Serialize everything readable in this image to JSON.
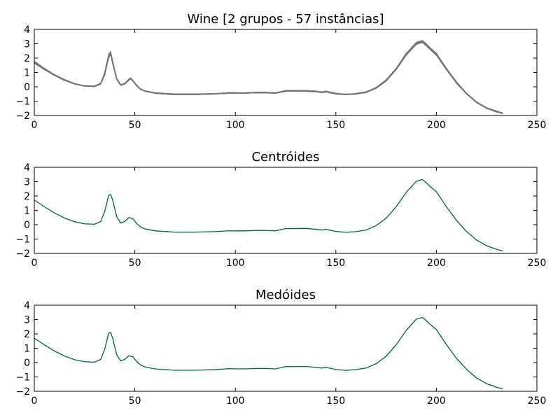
{
  "chart_data": [
    {
      "type": "line",
      "title": "Wine [2 grupos - 57 instâncias]",
      "xlabel": "",
      "ylabel": "",
      "xlim": [
        0,
        250
      ],
      "ylim": [
        -2,
        4
      ],
      "x_ticks": [
        "0",
        "50",
        "100",
        "150",
        "200",
        "250"
      ],
      "y_ticks": [
        "4",
        "3",
        "2",
        "1",
        "0",
        "−1",
        "−2"
      ],
      "grid": false,
      "legend": "none",
      "series_color": "#777777",
      "note_series_count": 57,
      "series": [
        {
          "x": [
            0,
            5,
            10,
            15,
            20,
            25,
            30,
            33,
            35,
            37,
            38,
            39,
            41,
            43,
            45,
            47,
            48,
            49,
            51,
            53,
            55,
            60,
            70,
            80,
            90,
            97,
            100,
            105,
            110,
            115,
            120,
            125,
            130,
            135,
            140,
            143,
            145,
            150,
            155,
            160,
            165,
            170,
            175,
            180,
            185,
            190,
            193,
            195,
            197,
            200,
            205,
            210,
            215,
            220,
            225,
            230,
            233
          ],
          "y": [
            1.65,
            1.2,
            0.8,
            0.45,
            0.2,
            0.05,
            0.02,
            0.2,
            0.8,
            2.0,
            2.25,
            1.6,
            0.5,
            0.1,
            0.2,
            0.45,
            0.55,
            0.4,
            0.05,
            -0.2,
            -0.3,
            -0.45,
            -0.55,
            -0.55,
            -0.5,
            -0.45,
            -0.45,
            -0.45,
            -0.42,
            -0.42,
            -0.45,
            -0.3,
            -0.3,
            -0.3,
            -0.35,
            -0.4,
            -0.35,
            -0.5,
            -0.55,
            -0.5,
            -0.4,
            -0.1,
            0.4,
            1.2,
            2.2,
            2.95,
            3.1,
            2.85,
            2.6,
            2.2,
            1.2,
            0.25,
            -0.5,
            -1.1,
            -1.5,
            -1.75,
            -1.85
          ]
        },
        {
          "x": [
            0,
            5,
            10,
            15,
            20,
            25,
            30,
            33,
            35,
            37,
            38,
            39,
            41,
            43,
            45,
            47,
            48,
            49,
            51,
            53,
            55,
            60,
            70,
            80,
            90,
            97,
            100,
            105,
            110,
            115,
            120,
            125,
            130,
            135,
            140,
            143,
            145,
            150,
            155,
            160,
            165,
            170,
            175,
            180,
            185,
            190,
            193,
            195,
            197,
            200,
            205,
            210,
            215,
            220,
            225,
            230,
            233
          ],
          "y": [
            1.8,
            1.3,
            0.85,
            0.5,
            0.22,
            0.08,
            0.05,
            0.25,
            1.0,
            2.3,
            2.45,
            1.8,
            0.6,
            0.15,
            0.25,
            0.55,
            0.62,
            0.45,
            0.1,
            -0.15,
            -0.28,
            -0.42,
            -0.5,
            -0.5,
            -0.47,
            -0.4,
            -0.42,
            -0.42,
            -0.38,
            -0.38,
            -0.42,
            -0.25,
            -0.25,
            -0.25,
            -0.3,
            -0.35,
            -0.3,
            -0.45,
            -0.52,
            -0.46,
            -0.35,
            -0.05,
            0.5,
            1.3,
            2.35,
            3.1,
            3.25,
            3.0,
            2.7,
            2.35,
            1.3,
            0.35,
            -0.45,
            -1.05,
            -1.45,
            -1.7,
            -1.82
          ]
        }
      ]
    },
    {
      "type": "line",
      "title": "Centróides",
      "xlabel": "",
      "ylabel": "",
      "xlim": [
        0,
        250
      ],
      "ylim": [
        -2,
        4
      ],
      "x_ticks": [
        "0",
        "50",
        "100",
        "150",
        "200",
        "250"
      ],
      "y_ticks": [
        "4",
        "3",
        "2",
        "1",
        "0",
        "−1",
        "−2"
      ],
      "grid": false,
      "legend": "none",
      "series_color": "#006633",
      "series": [
        {
          "x": [
            0,
            5,
            10,
            15,
            20,
            25,
            30,
            33,
            35,
            37,
            38,
            39,
            41,
            43,
            45,
            47,
            48,
            49,
            51,
            53,
            55,
            60,
            70,
            80,
            90,
            97,
            100,
            105,
            110,
            115,
            120,
            125,
            130,
            135,
            140,
            143,
            145,
            150,
            155,
            160,
            165,
            170,
            175,
            180,
            185,
            190,
            193,
            195,
            197,
            200,
            205,
            210,
            215,
            220,
            225,
            230,
            233
          ],
          "y": [
            1.72,
            1.25,
            0.82,
            0.47,
            0.21,
            0.06,
            0.03,
            0.22,
            0.9,
            2.05,
            2.1,
            1.7,
            0.55,
            0.12,
            0.22,
            0.5,
            0.45,
            0.42,
            0.07,
            -0.17,
            -0.29,
            -0.43,
            -0.52,
            -0.52,
            -0.48,
            -0.42,
            -0.43,
            -0.43,
            -0.4,
            -0.4,
            -0.43,
            -0.27,
            -0.27,
            -0.26,
            -0.32,
            -0.37,
            -0.32,
            -0.47,
            -0.53,
            -0.48,
            -0.37,
            -0.07,
            0.45,
            1.25,
            2.25,
            3.02,
            3.15,
            2.92,
            2.65,
            2.3,
            1.25,
            0.3,
            -0.47,
            -1.07,
            -1.47,
            -1.72,
            -1.83
          ]
        }
      ]
    },
    {
      "type": "line",
      "title": "Medóides",
      "xlabel": "",
      "ylabel": "",
      "xlim": [
        0,
        250
      ],
      "ylim": [
        -2,
        4
      ],
      "x_ticks": [
        "0",
        "50",
        "100",
        "150",
        "200",
        "250"
      ],
      "y_ticks": [
        "4",
        "3",
        "2",
        "1",
        "0",
        "−1",
        "−2"
      ],
      "grid": false,
      "legend": "none",
      "series_color": "#006633",
      "series": [
        {
          "x": [
            0,
            5,
            10,
            15,
            20,
            25,
            30,
            33,
            35,
            37,
            38,
            39,
            41,
            43,
            45,
            47,
            48,
            49,
            51,
            53,
            55,
            60,
            70,
            80,
            90,
            97,
            100,
            105,
            110,
            115,
            120,
            125,
            130,
            135,
            140,
            143,
            145,
            150,
            155,
            160,
            165,
            170,
            175,
            180,
            185,
            190,
            193,
            195,
            197,
            200,
            205,
            210,
            215,
            220,
            225,
            230,
            233
          ],
          "y": [
            1.7,
            1.24,
            0.81,
            0.46,
            0.2,
            0.06,
            0.03,
            0.22,
            0.92,
            2.05,
            2.1,
            1.68,
            0.54,
            0.12,
            0.22,
            0.48,
            0.44,
            0.41,
            0.06,
            -0.18,
            -0.3,
            -0.44,
            -0.53,
            -0.53,
            -0.49,
            -0.42,
            -0.44,
            -0.44,
            -0.41,
            -0.41,
            -0.44,
            -0.28,
            -0.28,
            -0.27,
            -0.33,
            -0.38,
            -0.33,
            -0.48,
            -0.54,
            -0.49,
            -0.38,
            -0.08,
            0.44,
            1.24,
            2.25,
            3.02,
            3.15,
            2.92,
            2.65,
            2.3,
            1.25,
            0.3,
            -0.47,
            -1.07,
            -1.47,
            -1.72,
            -1.83
          ]
        }
      ]
    }
  ]
}
